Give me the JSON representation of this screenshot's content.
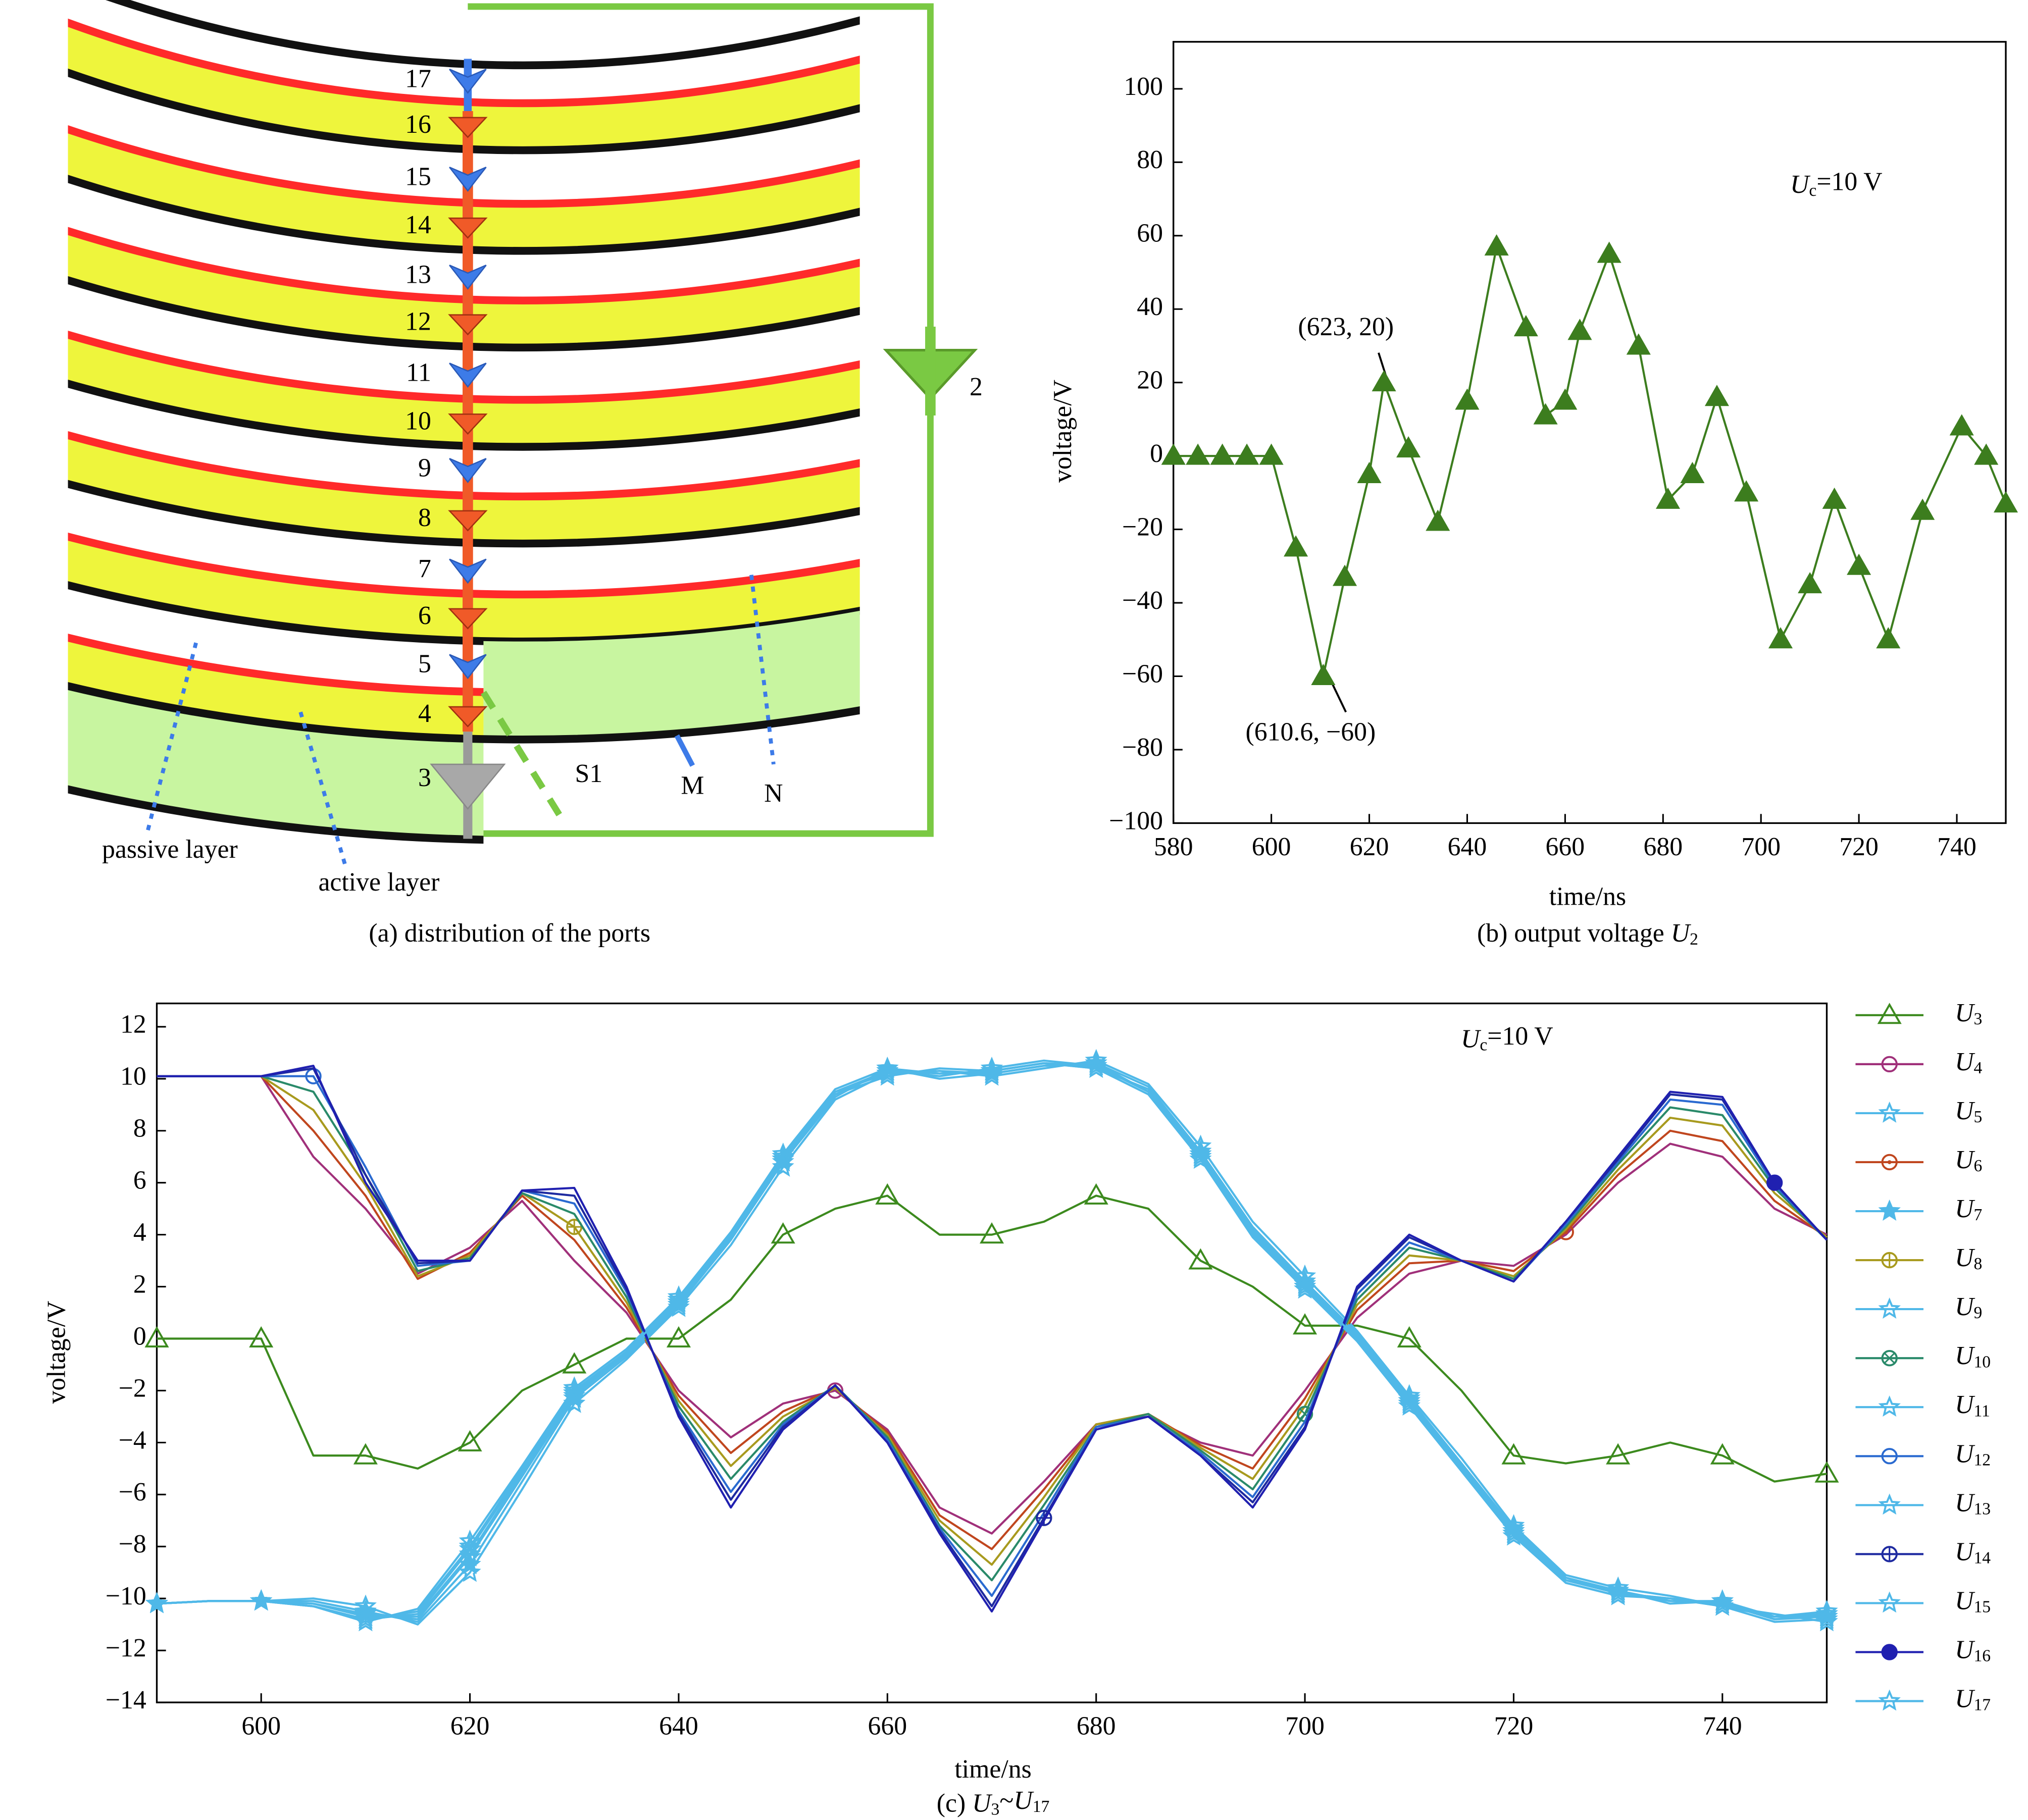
{
  "diagram": {
    "caption": "(a) distribution of the ports",
    "ports": [
      "17",
      "16",
      "15",
      "14",
      "13",
      "12",
      "11",
      "10",
      "9",
      "8",
      "7",
      "6",
      "5",
      "4",
      "3"
    ],
    "port_out": "2",
    "labels": {
      "passive": "passive layer",
      "active": "active layer",
      "s1": "S1",
      "m": "M",
      "n": "N"
    }
  },
  "chart_data": [
    {
      "type": "line",
      "caption": "(b) output voltage U2",
      "xlabel": "time/ns",
      "ylabel": "voltage/V",
      "annotations": [
        {
          "text": "Uc=10 V"
        },
        {
          "text": "(623, 20)"
        },
        {
          "text": "(610.6, −60)"
        }
      ],
      "x": [
        580,
        585,
        590,
        595,
        600,
        605,
        610.6,
        615,
        620,
        623,
        628,
        634,
        640,
        646,
        652,
        656,
        660,
        663,
        669,
        675,
        681,
        686,
        691,
        697,
        704,
        710,
        715,
        720,
        726,
        733,
        741,
        746,
        750
      ],
      "series": [
        {
          "color": "#3c7d1e",
          "marker": "triangle-filled",
          "values": [
            0,
            0,
            0,
            0,
            0,
            -25,
            -60,
            -33,
            -5,
            20,
            2,
            -18,
            15,
            57,
            35,
            11,
            15,
            34,
            55,
            30,
            -12,
            -5,
            16,
            -10,
            -50,
            -35,
            -12,
            -30,
            -50,
            -15,
            8,
            0,
            -13
          ]
        }
      ],
      "xlim": [
        580,
        750
      ],
      "ylim": [
        -100,
        112.8
      ],
      "xticks": [
        580,
        600,
        620,
        640,
        660,
        680,
        700,
        720,
        740
      ],
      "yticks": [
        {
          "value": -100,
          "label": "−100"
        },
        {
          "value": -80,
          "label": "−80"
        },
        {
          "value": -60,
          "label": "−60"
        },
        {
          "value": -40,
          "label": "−40"
        },
        {
          "value": -20,
          "label": "−20"
        },
        0,
        20,
        40,
        60,
        80,
        100
      ]
    },
    {
      "type": "line",
      "caption": "(c) U3~U17",
      "xlabel": "time/ns",
      "ylabel": "voltage/V",
      "annotations": [
        {
          "text": "Uc=10 V"
        }
      ],
      "legend": "right",
      "x": [
        590,
        595,
        600,
        605,
        610,
        615,
        620,
        625,
        630,
        635,
        640,
        645,
        650,
        655,
        660,
        665,
        670,
        675,
        680,
        685,
        690,
        695,
        700,
        705,
        710,
        715,
        720,
        725,
        730,
        735,
        740,
        745,
        750
      ],
      "series": [
        {
          "name": "U3",
          "color": "#3c8a1e",
          "marker": "triangle",
          "values": [
            0,
            0,
            0,
            -4.5,
            -4.5,
            -5,
            -4,
            -2,
            -1,
            0,
            0,
            1.5,
            4,
            5,
            5.5,
            4,
            4,
            4.5,
            5.5,
            5,
            3,
            2,
            0.5,
            0.5,
            0,
            -2,
            -4.5,
            -4.8,
            -4.5,
            -4,
            -4.5,
            -5.5,
            -5.2
          ]
        },
        {
          "name": "U4",
          "color": "#a0307a",
          "marker": "circle",
          "values": [
            10.1,
            10.1,
            10.1,
            7,
            5,
            2.5,
            3.5,
            5.3,
            3,
            1,
            -2,
            -3.8,
            -2.5,
            -2,
            -3.5,
            -6.5,
            -7.5,
            -5.5,
            -3.3,
            -3,
            -4,
            -4.5,
            -2,
            0.8,
            2.5,
            3,
            2.8,
            4,
            6,
            7.5,
            7,
            5,
            4
          ]
        },
        {
          "name": "U5",
          "color": "#4fb8e8",
          "marker": "star",
          "values": [
            -10.2,
            -10.1,
            -10.1,
            -10,
            -10.3,
            -11,
            -9,
            -5.8,
            -2.5,
            -0.8,
            1.2,
            3.6,
            6.6,
            9.2,
            10.2,
            10.3,
            10.1,
            10.4,
            10.7,
            9.8,
            7.4,
            4.5,
            2.4,
            0.3,
            -2.2,
            -4.6,
            -7.2,
            -9.1,
            -9.6,
            -9.9,
            -10.3,
            -10.9,
            -10.8
          ]
        },
        {
          "name": "U6",
          "color": "#c0461e",
          "marker": "circle-dot",
          "values": [
            10.1,
            10.1,
            10.1,
            8,
            5.5,
            2.3,
            3.3,
            5.5,
            3.8,
            1.2,
            -2.2,
            -4.4,
            -2.8,
            -1.9,
            -3.6,
            -6.8,
            -8.1,
            -5.8,
            -3.3,
            -2.9,
            -4.1,
            -5,
            -2.3,
            1.1,
            2.9,
            3,
            2.6,
            4.1,
            6.3,
            8,
            7.6,
            5.3,
            3.9
          ]
        },
        {
          "name": "U7",
          "color": "#4fb8e8",
          "marker": "star-filled",
          "values": [
            -10.2,
            -10.1,
            -10.1,
            -10.1,
            -10.5,
            -10.9,
            -8.7,
            -5.5,
            -2.3,
            -0.7,
            1.3,
            3.8,
            6.8,
            9.3,
            10.4,
            10,
            10.2,
            10.5,
            10.6,
            9.7,
            7.2,
            4.3,
            2.2,
            0.2,
            -2.3,
            -4.8,
            -7.3,
            -9.2,
            -9.7,
            -10.1,
            -10.1,
            -10.8,
            -10.7
          ]
        },
        {
          "name": "U8",
          "color": "#a89a1e",
          "marker": "circle-plus",
          "values": [
            10.1,
            10.1,
            10.1,
            8.8,
            5.9,
            2.4,
            3.2,
            5.6,
            4.3,
            1.4,
            -2.4,
            -4.9,
            -3,
            -1.9,
            -3.7,
            -7,
            -8.7,
            -6.1,
            -3.3,
            -2.9,
            -4.2,
            -5.4,
            -2.6,
            1.3,
            3.2,
            3,
            2.4,
            4.2,
            6.5,
            8.5,
            8.2,
            5.6,
            3.9
          ]
        },
        {
          "name": "U9",
          "color": "#4fb8e8",
          "marker": "star",
          "values": [
            -10.2,
            -10.1,
            -10.1,
            -10.2,
            -10.6,
            -10.8,
            -8.4,
            -5.3,
            -2.2,
            -0.6,
            1.4,
            3.9,
            6.9,
            9.4,
            10.1,
            10.4,
            10.3,
            10.6,
            10.4,
            9.6,
            7.1,
            4.2,
            2.1,
            0.1,
            -2.4,
            -4.9,
            -7.4,
            -9.2,
            -9.8,
            -10,
            -10.3,
            -10.6,
            -10.9
          ]
        },
        {
          "name": "U10",
          "color": "#2a8a6a",
          "marker": "circle-x",
          "values": [
            10.1,
            10.1,
            10.1,
            9.5,
            6.3,
            2.6,
            3.1,
            5.6,
            4.8,
            1.6,
            -2.6,
            -5.4,
            -3.2,
            -1.8,
            -3.8,
            -7.2,
            -9.3,
            -6.4,
            -3.4,
            -2.9,
            -4.3,
            -5.8,
            -2.9,
            1.5,
            3.5,
            3,
            2.3,
            4.3,
            6.7,
            8.9,
            8.6,
            5.8,
            3.8
          ]
        },
        {
          "name": "U11",
          "color": "#4fb8e8",
          "marker": "star-x",
          "values": [
            -10.2,
            -10.1,
            -10.1,
            -10.2,
            -10.7,
            -10.7,
            -8.3,
            -5.2,
            -2.1,
            -0.6,
            1.4,
            3.9,
            6.9,
            9.4,
            10.3,
            10.1,
            10.4,
            10.7,
            10.5,
            9.5,
            7.1,
            4.1,
            2.1,
            0.1,
            -2.4,
            -4.9,
            -7.4,
            -9.3,
            -9.7,
            -10.2,
            -10.1,
            -10.7,
            -10.5
          ]
        },
        {
          "name": "U12",
          "color": "#2a6ad0",
          "marker": "circle",
          "values": [
            10.1,
            10.1,
            10.1,
            10.1,
            6.6,
            2.8,
            3,
            5.7,
            5.2,
            1.8,
            -2.8,
            -5.9,
            -3.3,
            -1.8,
            -3.9,
            -7.3,
            -9.9,
            -6.7,
            -3.4,
            -3,
            -4.4,
            -6.1,
            -3.2,
            1.7,
            3.7,
            3,
            2.2,
            4.4,
            6.8,
            9.2,
            9,
            5.9,
            3.8
          ]
        },
        {
          "name": "U13",
          "color": "#4fb8e8",
          "marker": "star",
          "values": [
            -10.2,
            -10.1,
            -10.1,
            -10.3,
            -10.8,
            -10.6,
            -8.1,
            -5.1,
            -2.1,
            -0.5,
            1.5,
            4,
            7,
            9.5,
            10.2,
            10.3,
            10.2,
            10.5,
            10.6,
            9.5,
            7,
            4.1,
            2,
            0,
            -2.5,
            -5,
            -7.5,
            -9.3,
            -9.8,
            -10.1,
            -10.2,
            -10.8,
            -10.6
          ]
        },
        {
          "name": "U14",
          "color": "#1e2aa0",
          "marker": "circle-plus",
          "values": [
            10.1,
            10.1,
            10.1,
            10.4,
            6.3,
            2.9,
            3,
            5.7,
            5.5,
            1.9,
            -2.9,
            -6.2,
            -3.4,
            -1.8,
            -4,
            -7.4,
            -10.3,
            -6.9,
            -3.5,
            -3,
            -4.5,
            -6.3,
            -3.4,
            1.9,
            3.9,
            3,
            2.2,
            4.5,
            6.9,
            9.4,
            9.2,
            6,
            3.8
          ]
        },
        {
          "name": "U15",
          "color": "#4fb8e8",
          "marker": "star",
          "values": [
            -10.2,
            -10.1,
            -10.1,
            -10.3,
            -10.9,
            -10.4,
            -7.8,
            -4.9,
            -1.9,
            -0.4,
            1.6,
            4.1,
            7.1,
            9.6,
            10.4,
            10.2,
            10.3,
            10.6,
            10.4,
            9.4,
            6.9,
            3.9,
            1.9,
            -0.1,
            -2.6,
            -5.1,
            -7.6,
            -9.4,
            -9.9,
            -10,
            -10.3,
            -10.7,
            -10.7
          ]
        },
        {
          "name": "U16",
          "color": "#2020b0",
          "marker": "circle-filled",
          "values": [
            10.1,
            10.1,
            10.1,
            10.5,
            6,
            3,
            3,
            5.7,
            5.8,
            2,
            -3,
            -6.5,
            -3.5,
            -1.8,
            -4,
            -7.5,
            -10.5,
            -7,
            -3.5,
            -3,
            -4.5,
            -6.5,
            -3.5,
            2,
            4,
            3,
            2.2,
            4.5,
            7,
            9.5,
            9.3,
            6,
            3.8
          ]
        },
        {
          "name": "U17",
          "color": "#4fb8e8",
          "marker": "star",
          "values": [
            -10.2,
            -10.1,
            -10.1,
            -10.3,
            -10.8,
            -10.5,
            -8,
            -5,
            -2,
            -0.5,
            1.5,
            4,
            7,
            9.5,
            10.3,
            10.2,
            10.3,
            10.6,
            10.5,
            9.5,
            7,
            4,
            2,
            0,
            -2.5,
            -5,
            -7.5,
            -9.3,
            -9.8,
            -10,
            -10.2,
            -10.7,
            -10.6
          ]
        }
      ],
      "xlim": [
        590,
        750
      ],
      "ylim": [
        -14,
        12.9
      ],
      "xticks": [
        600,
        620,
        640,
        660,
        680,
        700,
        720,
        740
      ],
      "yticks": [
        {
          "value": -14,
          "label": "−14"
        },
        {
          "value": -12,
          "label": "−12"
        },
        {
          "value": -10,
          "label": "−10"
        },
        {
          "value": -8,
          "label": "−8"
        },
        {
          "value": -6,
          "label": "−6"
        },
        {
          "value": -4,
          "label": "−4"
        },
        {
          "value": -2,
          "label": "−2"
        },
        0,
        2,
        4,
        6,
        8,
        10,
        12
      ]
    }
  ]
}
